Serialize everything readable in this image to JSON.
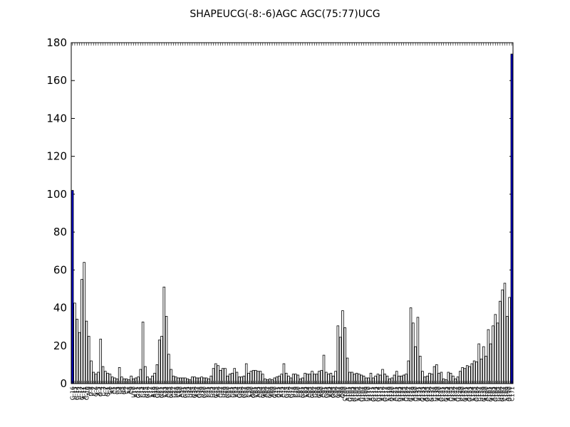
{
  "chart_data": {
    "type": "bar",
    "title": "SHAPEUCG(-8:-6)AGC AGC(75:77)UCG",
    "xlabel": "",
    "ylabel": "",
    "ylim": [
      0,
      180
    ],
    "yticks": [
      0,
      20,
      40,
      60,
      80,
      100,
      120,
      140,
      160,
      180
    ],
    "grid": false,
    "bar_color": "#ffffff",
    "highlight_color": "#0000cc",
    "edge_color": "#000000",
    "values": [
      102,
      42.5,
      34,
      27,
      55,
      64,
      33,
      25,
      12,
      6,
      5,
      6,
      23.5,
      9,
      6.5,
      5.5,
      5,
      3.5,
      3,
      2.5,
      8.5,
      3.5,
      2.5,
      2.5,
      2,
      4,
      2.5,
      3,
      3.5,
      7.5,
      32.5,
      9,
      3.5,
      2.5,
      4,
      5.5,
      10,
      23,
      25,
      51,
      35.5,
      15.5,
      7.5,
      4,
      3.5,
      3,
      3,
      3,
      3,
      2.5,
      2,
      3.5,
      3.5,
      3,
      3,
      3.5,
      3,
      3,
      2.5,
      4,
      8,
      10.5,
      9.5,
      7,
      8,
      8,
      4,
      5,
      5.5,
      8,
      6,
      3.5,
      3.5,
      4,
      10.5,
      5.5,
      6.5,
      7,
      7,
      6.5,
      6.5,
      5,
      2.5,
      2,
      2.5,
      2,
      3,
      3.5,
      4,
      5,
      10.5,
      5.5,
      4,
      3,
      5,
      5,
      4.5,
      2.5,
      3,
      5.5,
      5,
      5,
      6.5,
      5,
      5,
      6.5,
      7,
      15,
      6,
      5,
      5.5,
      4,
      6.5,
      30.5,
      24.5,
      38.5,
      29.5,
      13.5,
      6,
      6,
      5,
      5.5,
      5,
      4.5,
      4,
      3,
      3,
      5.5,
      3,
      4,
      5,
      4.5,
      7.5,
      5,
      4,
      2.5,
      3,
      4.5,
      6.5,
      4,
      4,
      4.5,
      5,
      12,
      40,
      32,
      19.5,
      35,
      14.5,
      6.5,
      3.5,
      4,
      5.5,
      5,
      9,
      10,
      5.5,
      6,
      2.5,
      2,
      6,
      5.5,
      4,
      2.5,
      3.5,
      6.5,
      8.5,
      8,
      9.5,
      9,
      10.5,
      12,
      11.5,
      21,
      13,
      19.5,
      14.5,
      28.5,
      21,
      30.5,
      36.5,
      32,
      43.5,
      49.5,
      53,
      35.5,
      45.5,
      174
    ],
    "highlight_indices": [
      0,
      187
    ],
    "tick_labels": [
      "G-16",
      "U-15",
      "G-14",
      "U-13",
      "G-12",
      "A-11",
      "G-10",
      "A-9",
      "U-8",
      "C-7",
      "G-6",
      "A-5",
      "G-4",
      "C-3",
      "U-2",
      "G-1",
      "G0",
      "A1",
      "C2",
      "G3",
      "C4",
      "U5",
      "G6",
      "C7",
      "A8",
      "C9",
      "U10",
      "A11",
      "G12",
      "C13",
      "C14",
      "U15",
      "G16",
      "C17",
      "A18",
      "A19",
      "G20",
      "U21",
      "G22",
      "C23",
      "A24",
      "C25",
      "G26",
      "C27",
      "U28",
      "C29",
      "A30",
      "C31",
      "G32",
      "C33",
      "U34",
      "U35",
      "G36",
      "A37",
      "G38",
      "U39",
      "G40",
      "C41",
      "C42",
      "C43",
      "U44",
      "G45",
      "A46",
      "C47",
      "U48",
      "U49",
      "G50",
      "C51",
      "C52",
      "U53",
      "A54",
      "G55",
      "U56",
      "G57",
      "C58",
      "C59",
      "A60",
      "G61",
      "C62",
      "A63",
      "C64",
      "G65",
      "A66",
      "C67",
      "G68",
      "A69",
      "G70",
      "A71",
      "U72",
      "A73",
      "C74",
      "G75",
      "U76",
      "G77",
      "U78",
      "C79",
      "C80",
      "C81",
      "G82",
      "C83",
      "A84",
      "C85",
      "G86",
      "C87",
      "U88",
      "G89",
      "A90",
      "C91",
      "G92",
      "U93",
      "A94",
      "G95",
      "C96",
      "G97",
      "A98",
      "G99",
      "C100",
      "A101",
      "G102",
      "U103",
      "G104",
      "C105",
      "A106",
      "G107",
      "U108",
      "C109",
      "U110",
      "A111",
      "G112",
      "C113",
      "G114",
      "U115",
      "A116",
      "G117",
      "C118",
      "A119",
      "U120",
      "A121",
      "C122",
      "G123",
      "U124",
      "A125",
      "C126",
      "U127",
      "G128",
      "A129",
      "C130",
      "U131",
      "A132",
      "G133",
      "A134",
      "G135",
      "C136",
      "G137",
      "C138",
      "U139",
      "A140",
      "G141",
      "C142",
      "G143",
      "A144",
      "C145",
      "U146",
      "A147",
      "G148",
      "U149",
      "C150",
      "G151",
      "A152",
      "G153",
      "C154",
      "A155",
      "G156",
      "C157",
      "U158",
      "G159",
      "A160",
      "C161",
      "G162",
      "A163",
      "G164",
      "C165",
      "U166",
      "G167",
      "C168",
      "A169",
      "U170",
      "C171"
    ]
  }
}
